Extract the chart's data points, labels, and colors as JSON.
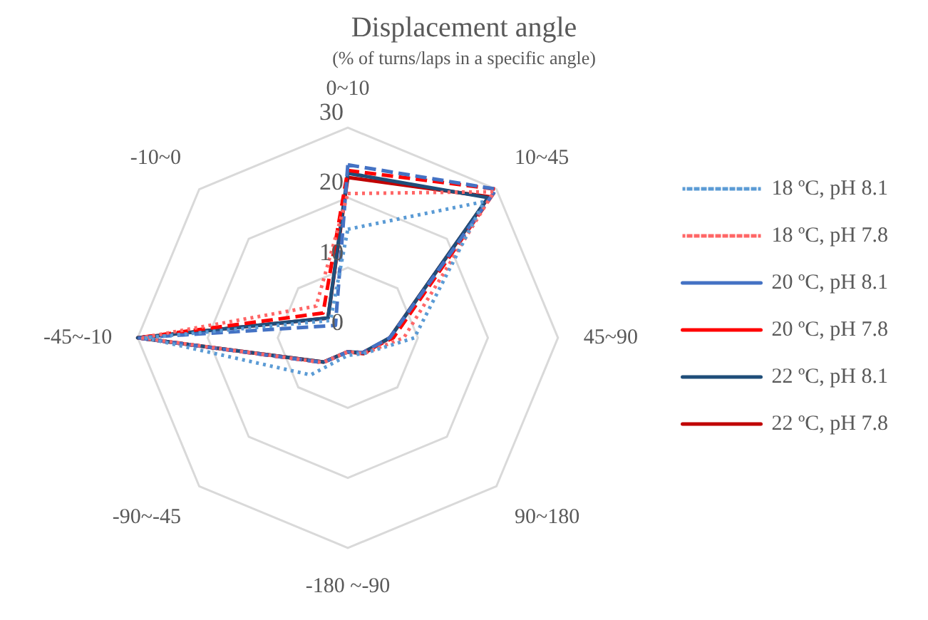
{
  "chart_data": {
    "type": "radar",
    "title": "Displacement angle",
    "subtitle": "(% of turns/laps in a specific angle)",
    "categories": [
      "0~10",
      "10~45",
      "45~90",
      "90~180",
      "-180 ~-90",
      "-90~-45",
      "-45~-10",
      "-10~0"
    ],
    "ylim": [
      0,
      30
    ],
    "yticks": [
      0,
      10,
      20,
      30
    ],
    "grid": true,
    "legend": "right",
    "marker": "none",
    "series": [
      {
        "name": "18 ºC, pH 8.1",
        "color": "#5b9bd5",
        "line_style": "dotted",
        "values": [
          15.5,
          27.5,
          9.5,
          3.2,
          2.5,
          7.5,
          29,
          3.5
        ]
      },
      {
        "name": "18 ºC, pH 7.8",
        "color": "#ff6666",
        "line_style": "dotted",
        "values": [
          20.6,
          29.5,
          8,
          3.2,
          2,
          5,
          29.5,
          6.4
        ]
      },
      {
        "name": "20 ºC, pH 8.1",
        "color": "#4472c4",
        "line_style": "dashed",
        "values": [
          24.7,
          30,
          6,
          3,
          2,
          5,
          30,
          2.5
        ]
      },
      {
        "name": "20 ºC, pH 7.8",
        "color": "#ff0000",
        "line_style": "dashed",
        "values": [
          23.9,
          30,
          6.5,
          3,
          2,
          5,
          30,
          5
        ]
      },
      {
        "name": "22 ºC, pH 8.1",
        "color": "#1f4e79",
        "line_style": "solid",
        "values": [
          23.5,
          28.3,
          6,
          3,
          2,
          4.9,
          30,
          4
        ]
      },
      {
        "name": "22 ºC, pH 7.8",
        "color": "#c00000",
        "line_style": "solid",
        "values": [
          22.9,
          28.5,
          6,
          3.2,
          2,
          4.9,
          30,
          4
        ]
      }
    ]
  }
}
